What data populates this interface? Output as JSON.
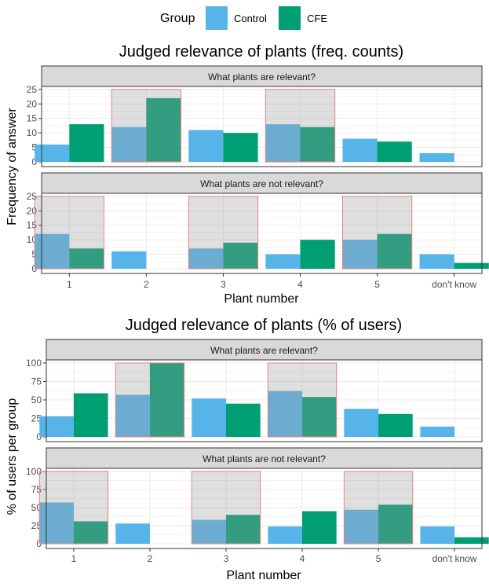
{
  "legend": {
    "title": "Group",
    "entries": [
      {
        "name": "Control",
        "color": "#56B4E9"
      },
      {
        "name": "CFE",
        "color": "#009E73"
      }
    ]
  },
  "colors": {
    "control": "#56B4E9",
    "cfe": "#009E73",
    "highlight_fill": "#9a9a9a",
    "highlight_stroke": "#f08080",
    "strip_fill": "#d9d9d9",
    "grid": "#ebebeb"
  },
  "chart_data": [
    {
      "type": "bar",
      "title": "Judged relevance of plants (freq. counts)",
      "xlabel": "Plant number",
      "ylabel": "Frequency of answer",
      "categories": [
        "1",
        "2",
        "3",
        "4",
        "5",
        "don't know"
      ],
      "ylim": [
        0,
        25
      ],
      "yticks": [
        "0",
        "5",
        "10",
        "15",
        "20",
        "25"
      ],
      "facets": [
        {
          "label": "What plants are relevant?",
          "highlighted": [
            "2",
            "4"
          ],
          "series": [
            {
              "name": "Control",
              "values": [
                6,
                12,
                11,
                13,
                8,
                3
              ]
            },
            {
              "name": "CFE",
              "values": [
                13,
                22,
                10,
                12,
                7,
                0
              ]
            }
          ]
        },
        {
          "label": "What plants are not relevant?",
          "highlighted": [
            "1",
            "3",
            "5"
          ],
          "series": [
            {
              "name": "Control",
              "values": [
                12,
                6,
                7,
                5,
                10,
                5
              ]
            },
            {
              "name": "CFE",
              "values": [
                7,
                0,
                9,
                10,
                12,
                2
              ]
            }
          ]
        }
      ]
    },
    {
      "type": "bar",
      "title": "Judged relevance of plants (% of users)",
      "xlabel": "Plant number",
      "ylabel": "% of users per group",
      "categories": [
        "1",
        "2",
        "3",
        "4",
        "5",
        "don't know"
      ],
      "ylim": [
        0,
        100
      ],
      "yticks": [
        "0",
        "25",
        "50",
        "75",
        "100"
      ],
      "facets": [
        {
          "label": "What plants are relevant?",
          "highlighted": [
            "2",
            "4"
          ],
          "series": [
            {
              "name": "Control",
              "values": [
                28,
                57,
                52,
                62,
                38,
                14
              ]
            },
            {
              "name": "CFE",
              "values": [
                59,
                100,
                45,
                54,
                31,
                0
              ]
            }
          ]
        },
        {
          "label": "What plants are not relevant?",
          "highlighted": [
            "1",
            "3",
            "5"
          ],
          "series": [
            {
              "name": "Control",
              "values": [
                57,
                28,
                33,
                24,
                47,
                24
              ]
            },
            {
              "name": "CFE",
              "values": [
                31,
                0,
                40,
                45,
                54,
                9
              ]
            }
          ]
        }
      ]
    }
  ]
}
